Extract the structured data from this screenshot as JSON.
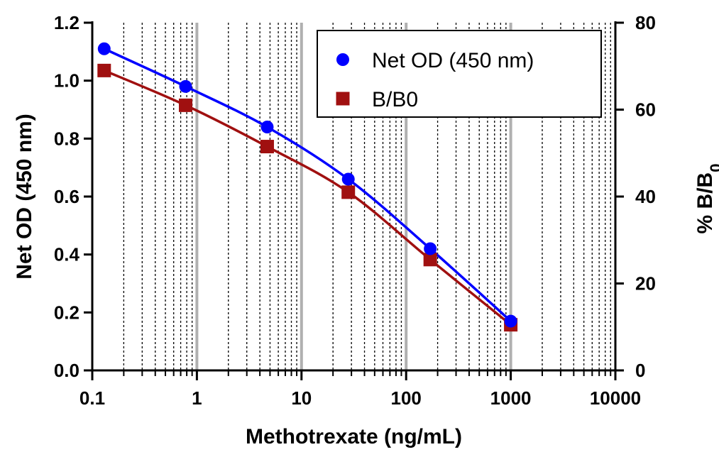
{
  "chart_data": {
    "type": "line",
    "title": "",
    "xlabel": "Methotrexate (ng/mL)",
    "ylabel": "Net OD (450 nm)",
    "y2label": "% B/B0",
    "x_scale": "log",
    "xlim": [
      0.1,
      10000
    ],
    "ylim": [
      0,
      1.2
    ],
    "y2lim": [
      0,
      80
    ],
    "grid": "x-only",
    "legend_position": "top-right",
    "x_ticks": [
      "0.1",
      "1",
      "10",
      "100",
      "1000",
      "10000"
    ],
    "y_ticks": [
      "0.0",
      "0.2",
      "0.4",
      "0.6",
      "0.8",
      "1.0",
      "1.2"
    ],
    "y2_ticks": [
      "0",
      "20",
      "40",
      "60",
      "80"
    ],
    "x": [
      0.13,
      0.78,
      4.7,
      28,
      170,
      1000
    ],
    "series": [
      {
        "name": "Net OD (450 nm)",
        "axis": "left",
        "color": "#0000ff",
        "marker": "circle",
        "values": [
          1.11,
          0.98,
          0.84,
          0.66,
          0.42,
          0.17
        ]
      },
      {
        "name": "B/B0",
        "axis": "right",
        "color": "#a01010",
        "marker": "square",
        "values": [
          69,
          61,
          51.5,
          41,
          25.5,
          10.5
        ]
      }
    ]
  }
}
